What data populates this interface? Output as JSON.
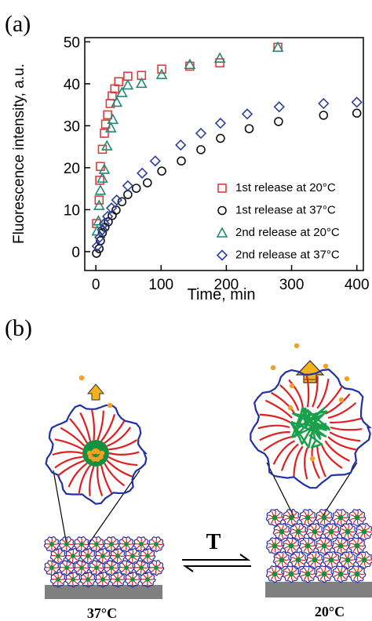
{
  "panel_labels": [
    "(a)",
    "(b)"
  ],
  "chart_data": {
    "type": "scatter",
    "x_label": "Time, min",
    "y_label": "Fluorescence intensity, a.u.",
    "xlim": [
      -17,
      410
    ],
    "ylim": [
      -4.5,
      51
    ],
    "xticks": [
      0,
      100,
      200,
      300,
      400
    ],
    "yticks": [
      0,
      10,
      20,
      30,
      40,
      50
    ],
    "legend": "lower right",
    "series": [
      {
        "name": "1st release at 20°C",
        "color": "#e03a3a",
        "marker": "square",
        "x": [
          1,
          5,
          6,
          7,
          10,
          13,
          15,
          18,
          22,
          25,
          29,
          35,
          49,
          70,
          101,
          144,
          190,
          279
        ],
        "values": [
          6.7,
          12.3,
          17,
          20.3,
          24.4,
          28.2,
          30.4,
          32.6,
          35.3,
          37.1,
          38.8,
          40.5,
          41.8,
          42,
          43.5,
          44.2,
          45,
          48.7
        ]
      },
      {
        "name": "1st release at 37°C",
        "color": "#111111",
        "marker": "circle",
        "x": [
          1,
          5,
          7,
          10,
          14,
          19,
          25,
          31,
          40,
          49,
          62,
          79,
          101,
          131,
          161,
          191,
          235,
          280,
          349,
          400
        ],
        "values": [
          -0.4,
          0.7,
          2.6,
          4.5,
          5.8,
          7.1,
          8.6,
          9.9,
          11.9,
          13.6,
          15.1,
          16.4,
          19.2,
          21.6,
          24.3,
          27,
          29.3,
          31,
          32.5,
          33
        ]
      },
      {
        "name": "2nd release at 20°C",
        "color": "#1f8a78",
        "marker": "triangle",
        "x": [
          2,
          4,
          5,
          7,
          10,
          13,
          17,
          23,
          26,
          32,
          40,
          49,
          70,
          101,
          144,
          190,
          279
        ],
        "values": [
          4.9,
          7.3,
          11,
          14.6,
          17.5,
          19.6,
          25.2,
          29.5,
          31.5,
          35.6,
          37.9,
          39.7,
          40.1,
          42.2,
          44.6,
          46.1,
          48.7
        ]
      },
      {
        "name": "2nd release at 37°C",
        "color": "#2c3e9e",
        "marker": "diamond",
        "x": [
          2,
          6,
          10,
          13,
          18,
          24,
          32,
          49,
          71,
          91,
          130,
          161,
          191,
          232,
          281,
          349,
          400
        ],
        "values": [
          1.3,
          3.4,
          5.2,
          6.7,
          8.4,
          10.4,
          12.3,
          15.7,
          18.7,
          21.6,
          25.4,
          28.2,
          30.6,
          32.8,
          34.5,
          35.3,
          35.6
        ]
      }
    ]
  },
  "diagram": {
    "arrow_label": "T",
    "left_temperature": "37°C",
    "right_temperature": "20°C"
  }
}
